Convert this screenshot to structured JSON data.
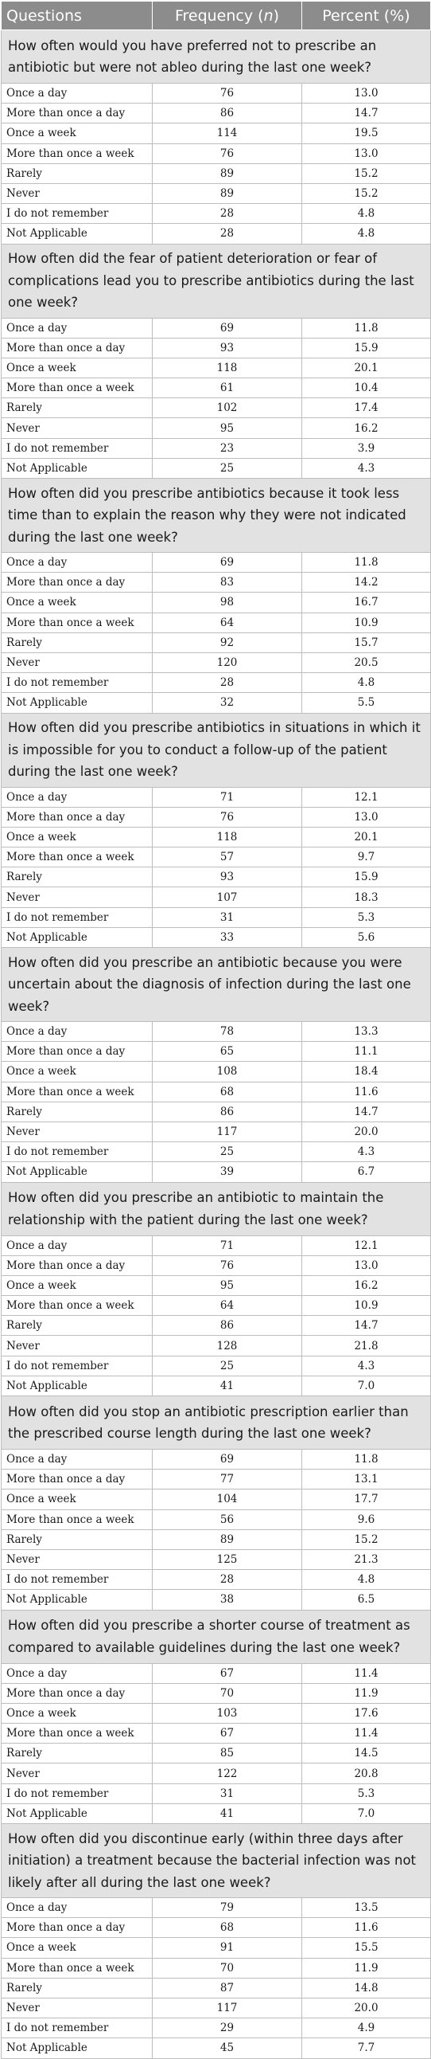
{
  "header": {
    "questions": "Questions",
    "frequency": "Frequency (n)",
    "percent": "Percent (%)"
  },
  "sections": [
    {
      "question": "How often would you have preferred not to prescribe an antibiotic but were not ableo during the last one week?",
      "rows": [
        {
          "label": "Once a day",
          "freq": "76",
          "pct": "13.0"
        },
        {
          "label": "More than once a day",
          "freq": "86",
          "pct": "14.7"
        },
        {
          "label": "Once a week",
          "freq": "114",
          "pct": "19.5"
        },
        {
          "label": "More than once a week",
          "freq": "76",
          "pct": "13.0"
        },
        {
          "label": "Rarely",
          "freq": "89",
          "pct": "15.2"
        },
        {
          "label": "Never",
          "freq": "89",
          "pct": "15.2"
        },
        {
          "label": "I do not remember",
          "freq": "28",
          "pct": "4.8"
        },
        {
          "label": "Not Applicable",
          "freq": "28",
          "pct": "4.8"
        }
      ]
    },
    {
      "question": "How often did the fear of patient deterioration or fear of complications lead you to prescribe antibiotics during the last one week?",
      "rows": [
        {
          "label": "Once a day",
          "freq": "69",
          "pct": "11.8"
        },
        {
          "label": "More than once a day",
          "freq": "93",
          "pct": "15.9"
        },
        {
          "label": "Once a week",
          "freq": "118",
          "pct": "20.1"
        },
        {
          "label": "More than once a week",
          "freq": "61",
          "pct": "10.4"
        },
        {
          "label": "Rarely",
          "freq": "102",
          "pct": "17.4"
        },
        {
          "label": "Never",
          "freq": "95",
          "pct": "16.2"
        },
        {
          "label": "I do not remember",
          "freq": "23",
          "pct": "3.9"
        },
        {
          "label": "Not Applicable",
          "freq": "25",
          "pct": "4.3"
        }
      ]
    },
    {
      "question": "How often did you prescribe antibiotics because it took less time than to explain the reason why they were not indicated during the last one week?",
      "rows": [
        {
          "label": "Once a day",
          "freq": "69",
          "pct": "11.8"
        },
        {
          "label": "More than once a day",
          "freq": "83",
          "pct": "14.2"
        },
        {
          "label": "Once a week",
          "freq": "98",
          "pct": "16.7"
        },
        {
          "label": "More than once a week",
          "freq": "64",
          "pct": "10.9"
        },
        {
          "label": "Rarely",
          "freq": "92",
          "pct": "15.7"
        },
        {
          "label": "Never",
          "freq": "120",
          "pct": "20.5"
        },
        {
          "label": "I do not remember",
          "freq": "28",
          "pct": "4.8"
        },
        {
          "label": "Not Applicable",
          "freq": "32",
          "pct": "5.5"
        }
      ]
    },
    {
      "question": "How often did you prescribe antibiotics in situations in which it is impossible for you to conduct a follow-up of the patient during the last one week?",
      "rows": [
        {
          "label": "Once a day",
          "freq": "71",
          "pct": "12.1"
        },
        {
          "label": "More than once a day",
          "freq": "76",
          "pct": "13.0"
        },
        {
          "label": "Once a week",
          "freq": "118",
          "pct": "20.1"
        },
        {
          "label": "More than once a week",
          "freq": "57",
          "pct": "9.7"
        },
        {
          "label": "Rarely",
          "freq": "93",
          "pct": "15.9"
        },
        {
          "label": "Never",
          "freq": "107",
          "pct": "18.3"
        },
        {
          "label": "I do not remember",
          "freq": "31",
          "pct": "5.3"
        },
        {
          "label": "Not Applicable",
          "freq": "33",
          "pct": "5.6"
        }
      ]
    },
    {
      "question": "How often did you prescribe an antibiotic because you were uncertain about the diagnosis of infection during the last one week?",
      "rows": [
        {
          "label": "Once a day",
          "freq": "78",
          "pct": "13.3"
        },
        {
          "label": "More than once a day",
          "freq": "65",
          "pct": "11.1"
        },
        {
          "label": "Once a week",
          "freq": "108",
          "pct": "18.4"
        },
        {
          "label": "More than once a week",
          "freq": "68",
          "pct": "11.6"
        },
        {
          "label": "Rarely",
          "freq": "86",
          "pct": "14.7"
        },
        {
          "label": "Never",
          "freq": "117",
          "pct": "20.0"
        },
        {
          "label": "I do not remember",
          "freq": "25",
          "pct": "4.3"
        },
        {
          "label": "Not Applicable",
          "freq": "39",
          "pct": "6.7"
        }
      ]
    },
    {
      "question": "How often did you prescribe an antibiotic to maintain the relationship with the patient during the last one week?",
      "rows": [
        {
          "label": "Once a day",
          "freq": "71",
          "pct": "12.1"
        },
        {
          "label": "More than once a day",
          "freq": "76",
          "pct": "13.0"
        },
        {
          "label": "Once a week",
          "freq": "95",
          "pct": "16.2"
        },
        {
          "label": "More than once a week",
          "freq": "64",
          "pct": "10.9"
        },
        {
          "label": "Rarely",
          "freq": "86",
          "pct": "14.7"
        },
        {
          "label": "Never",
          "freq": "128",
          "pct": "21.8"
        },
        {
          "label": "I do not remember",
          "freq": "25",
          "pct": "4.3"
        },
        {
          "label": "Not Applicable",
          "freq": "41",
          "pct": "7.0"
        }
      ]
    },
    {
      "question": "How often did you stop an antibiotic prescription earlier than the prescribed course length during the last one week?",
      "rows": [
        {
          "label": "Once a day",
          "freq": "69",
          "pct": "11.8"
        },
        {
          "label": "More than once a day",
          "freq": "77",
          "pct": "13.1"
        },
        {
          "label": "Once a week",
          "freq": "104",
          "pct": "17.7"
        },
        {
          "label": "More than once a week",
          "freq": "56",
          "pct": "9.6"
        },
        {
          "label": "Rarely",
          "freq": "89",
          "pct": "15.2"
        },
        {
          "label": "Never",
          "freq": "125",
          "pct": "21.3"
        },
        {
          "label": "I do not remember",
          "freq": "28",
          "pct": "4.8"
        },
        {
          "label": "Not Applicable",
          "freq": "38",
          "pct": "6.5"
        }
      ]
    },
    {
      "question": "How often did you prescribe a shorter course of treatment as compared to available guidelines during the last one week?",
      "rows": [
        {
          "label": "Once a day",
          "freq": "67",
          "pct": "11.4"
        },
        {
          "label": "More than once a day",
          "freq": "70",
          "pct": "11.9"
        },
        {
          "label": "Once a week",
          "freq": "103",
          "pct": "17.6"
        },
        {
          "label": "More than once a week",
          "freq": "67",
          "pct": "11.4"
        },
        {
          "label": "Rarely",
          "freq": "85",
          "pct": "14.5"
        },
        {
          "label": "Never",
          "freq": "122",
          "pct": "20.8"
        },
        {
          "label": "I do not remember",
          "freq": "31",
          "pct": "5.3"
        },
        {
          "label": "Not Applicable",
          "freq": "41",
          "pct": "7.0"
        }
      ]
    },
    {
      "question": "How often did you discontinue early (within three days after initiation) a treatment because the bacterial infection was not likely after all during the last one week?",
      "rows": [
        {
          "label": "Once a day",
          "freq": "79",
          "pct": "13.5"
        },
        {
          "label": "More than once a day",
          "freq": "68",
          "pct": "11.6"
        },
        {
          "label": "Once a week",
          "freq": "91",
          "pct": "15.5"
        },
        {
          "label": "More than once a week",
          "freq": "70",
          "pct": "11.9"
        },
        {
          "label": "Rarely",
          "freq": "87",
          "pct": "14.8"
        },
        {
          "label": "Never",
          "freq": "117",
          "pct": "20.0"
        },
        {
          "label": "I do not remember",
          "freq": "29",
          "pct": "4.9"
        },
        {
          "label": "Not Applicable",
          "freq": "45",
          "pct": "7.7"
        }
      ]
    }
  ]
}
